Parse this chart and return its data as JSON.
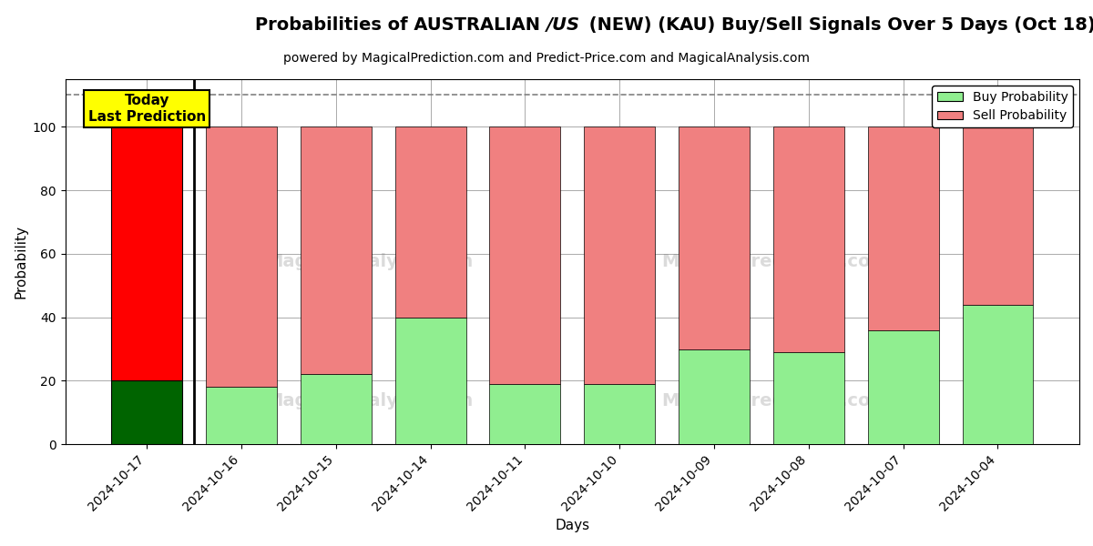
{
  "subtitle": "powered by MagicalPrediction.com and Predict-Price.com and MagicalAnalysis.com",
  "xlabel": "Days",
  "ylabel": "Probability",
  "categories": [
    "2024-10-17",
    "2024-10-16",
    "2024-10-15",
    "2024-10-14",
    "2024-10-11",
    "2024-10-10",
    "2024-10-09",
    "2024-10-08",
    "2024-10-07",
    "2024-10-04"
  ],
  "buy_values": [
    20,
    18,
    22,
    40,
    19,
    19,
    30,
    29,
    36,
    44
  ],
  "sell_values": [
    80,
    82,
    78,
    60,
    81,
    81,
    70,
    71,
    64,
    56
  ],
  "today_index": 0,
  "buy_color_today": "#006400",
  "sell_color_today": "#FF0000",
  "buy_color_normal": "#90EE90",
  "sell_color_normal": "#F08080",
  "today_label_bg": "#FFFF00",
  "legend_buy": "Buy Probability",
  "legend_sell": "Sell Probability",
  "dashed_line_y": 110,
  "ylim": [
    0,
    115
  ],
  "yticks": [
    0,
    20,
    40,
    60,
    80,
    100
  ],
  "background_color": "#FFFFFF",
  "grid_color": "#AAAAAA",
  "bar_width": 0.75,
  "title_fontsize": 14,
  "subtitle_fontsize": 10,
  "axis_fontsize": 11,
  "tick_fontsize": 10
}
